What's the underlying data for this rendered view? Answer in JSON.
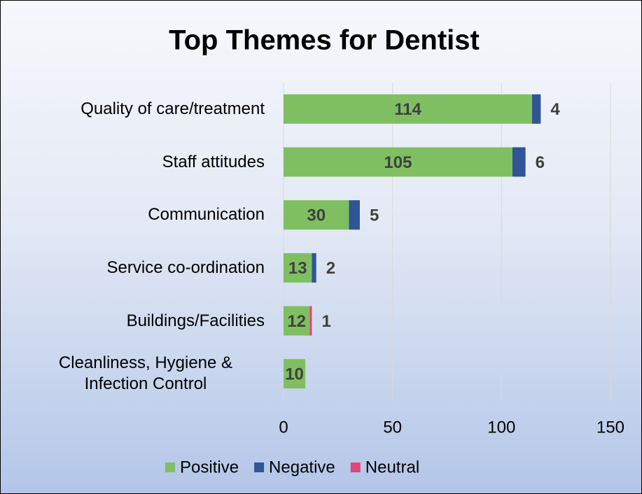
{
  "chart_data": {
    "type": "stacked_barh",
    "title": "Top Themes for Dentist",
    "categories": [
      "Quality of care/treatment",
      "Staff attitudes",
      "Communication",
      "Service co-ordination",
      "Buildings/Facilities",
      "Cleanliness, Hygiene & Infection Control"
    ],
    "series": [
      {
        "name": "Positive",
        "color": "#7fbf62",
        "values": [
          114,
          105,
          30,
          13,
          12,
          10
        ]
      },
      {
        "name": "Negative",
        "color": "#2f5597",
        "values": [
          4,
          6,
          5,
          2,
          null,
          null
        ]
      },
      {
        "name": "Neutral",
        "color": "#e0457b",
        "values": [
          null,
          null,
          null,
          null,
          1,
          null
        ]
      }
    ],
    "xlim": [
      0,
      150
    ],
    "xticks": [
      0,
      50,
      100,
      150
    ],
    "grid": true,
    "legend": "bottom"
  }
}
